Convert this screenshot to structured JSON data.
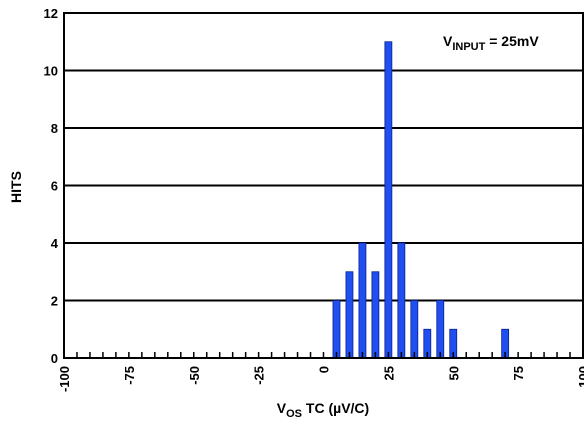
{
  "chart_data": {
    "type": "bar",
    "title": "",
    "xlabel": "V_OS TC (µV/C)",
    "xlabel_main": "V",
    "xlabel_sub": "OS",
    "xlabel_rest": " TC (µV/C)",
    "ylabel": "HITS",
    "annotation": "V_INPUT = 25mV",
    "annotation_main": "V",
    "annotation_sub": "INPUT",
    "annotation_rest": " = 25mV",
    "xlim": [
      -100,
      100
    ],
    "ylim": [
      0,
      12
    ],
    "x_ticks": [
      "-100",
      "-75",
      "-50",
      "-25",
      "0",
      "25",
      "50",
      "75",
      "100"
    ],
    "y_ticks": [
      "0",
      "2",
      "4",
      "6",
      "8",
      "10",
      "12"
    ],
    "grid": "horizontal",
    "bar_color": "#1f4ff0",
    "x": [
      5,
      10,
      15,
      20,
      25,
      30,
      35,
      40,
      45,
      50,
      70
    ],
    "values": [
      2,
      3,
      4,
      3,
      11,
      4,
      2,
      1,
      2,
      1,
      1
    ]
  }
}
